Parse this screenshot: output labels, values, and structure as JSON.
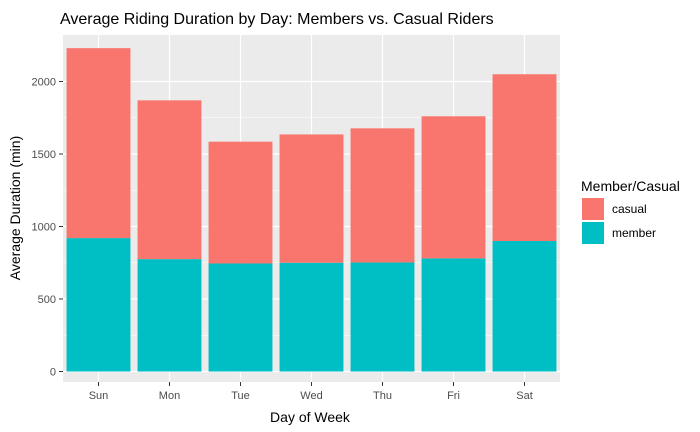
{
  "chart_data": {
    "type": "bar",
    "stacked": true,
    "title": "Average Riding Duration by Day: Members vs. Casual Riders",
    "xlabel": "Day of Week",
    "ylabel": "Average Duration (min)",
    "categories": [
      "Sun",
      "Mon",
      "Tue",
      "Wed",
      "Thu",
      "Fri",
      "Sat"
    ],
    "series": [
      {
        "name": "member",
        "color": "#00BFC4",
        "values": [
          920,
          775,
          745,
          750,
          752,
          780,
          900
        ]
      },
      {
        "name": "casual",
        "color": "#F8766D",
        "values": [
          1310,
          1095,
          840,
          885,
          925,
          980,
          1150
        ]
      }
    ],
    "ylim": [
      0,
      2250
    ],
    "yticks": [
      0,
      500,
      1000,
      1500,
      2000
    ],
    "grid": true,
    "panel_background": "#EBEBEB",
    "legend": {
      "title": "Member/Casual",
      "position": "right",
      "entries": [
        {
          "label": "casual",
          "color": "#F8766D"
        },
        {
          "label": "member",
          "color": "#00BFC4"
        }
      ]
    }
  }
}
